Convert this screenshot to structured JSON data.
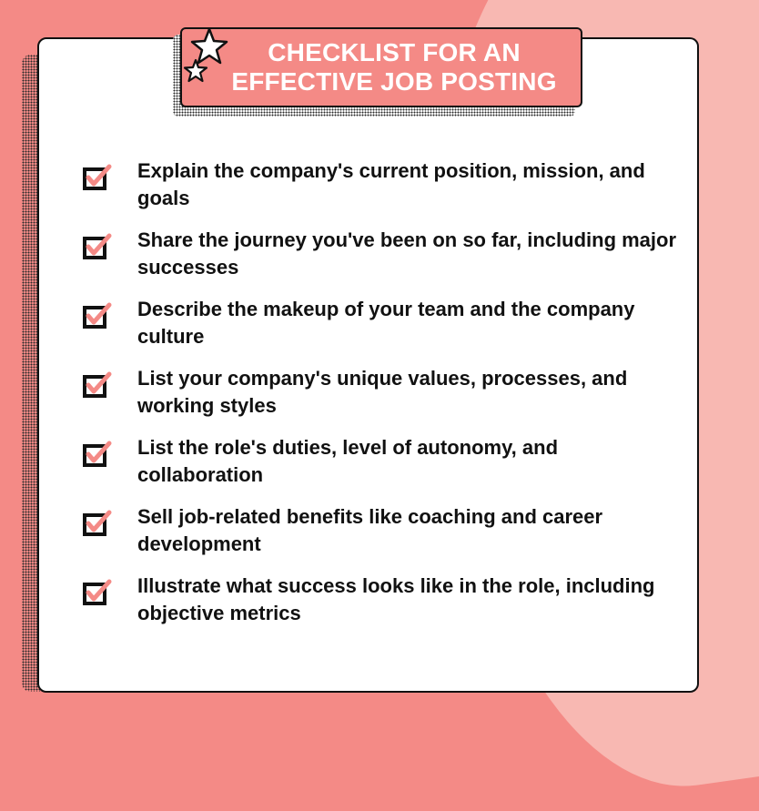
{
  "title": {
    "line1": "CHECKLIST FOR AN",
    "line2": "EFFECTIVE JOB POSTING"
  },
  "icons": {
    "title_decoration": "star-icon",
    "item_marker": "checkbox-checked-icon"
  },
  "colors": {
    "background": "#f48a86",
    "background_accent": "#f8b8b2",
    "title_fill": "#f48a86",
    "check_mark": "#f48a86",
    "outline": "#111111",
    "card": "#ffffff"
  },
  "checklist": [
    {
      "text": "Explain the company's current position, mission, and goals"
    },
    {
      "text": "Share the journey you've been on so far, including major successes"
    },
    {
      "text": "Describe the makeup of your team and the company culture"
    },
    {
      "text": "List your company's unique values, processes, and working styles"
    },
    {
      "text": "List the role's duties, level of autonomy, and collaboration"
    },
    {
      "text": "Sell job-related benefits like coaching and career development"
    },
    {
      "text": "Illustrate what success looks like in the role, including objective metrics"
    }
  ]
}
